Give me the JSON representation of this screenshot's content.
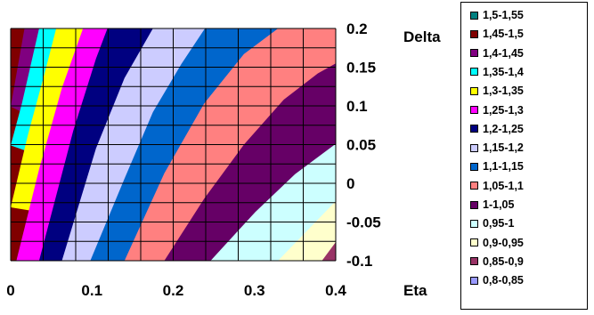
{
  "chart_data": {
    "type": "contour",
    "x_axis": {
      "label": "Eta",
      "ticks": [
        "0",
        "0.1",
        "0.2",
        "0.3",
        "0.4"
      ],
      "range": [
        0,
        0.4
      ]
    },
    "y_axis": {
      "label": "Delta",
      "ticks": [
        "0.2",
        "0.15",
        "0.1",
        "0.05",
        "0",
        "-0.05",
        "-0.1"
      ],
      "range": [
        -0.1,
        0.2
      ]
    },
    "grid": true,
    "legend_position": "right",
    "bands": [
      {
        "label": "1,5-1,55",
        "min": 1.5,
        "max": 1.55,
        "color": "#008080"
      },
      {
        "label": "1,45-1,5",
        "min": 1.45,
        "max": 1.5,
        "color": "#800000"
      },
      {
        "label": "1,4-1,45",
        "min": 1.4,
        "max": 1.45,
        "color": "#800080"
      },
      {
        "label": "1,35-1,4",
        "min": 1.35,
        "max": 1.4,
        "color": "#00FFFF"
      },
      {
        "label": "1,3-1,35",
        "min": 1.3,
        "max": 1.35,
        "color": "#FFFF00"
      },
      {
        "label": "1,25-1,3",
        "min": 1.25,
        "max": 1.3,
        "color": "#FF00FF"
      },
      {
        "label": "1,2-1,25",
        "min": 1.2,
        "max": 1.25,
        "color": "#000080"
      },
      {
        "label": "1,15-1,2",
        "min": 1.15,
        "max": 1.2,
        "color": "#CCCCFF"
      },
      {
        "label": "1,1-1,15",
        "min": 1.1,
        "max": 1.15,
        "color": "#0066CC"
      },
      {
        "label": "1,05-1,1",
        "min": 1.05,
        "max": 1.1,
        "color": "#FF8080"
      },
      {
        "label": "1-1,05",
        "min": 1.0,
        "max": 1.05,
        "color": "#660066"
      },
      {
        "label": "0,95-1",
        "min": 0.95,
        "max": 1.0,
        "color": "#CCFFFF"
      },
      {
        "label": "0,9-0,95",
        "min": 0.9,
        "max": 0.95,
        "color": "#FFFFCC"
      },
      {
        "label": "0,85-0,9",
        "min": 0.85,
        "max": 0.9,
        "color": "#993366"
      },
      {
        "label": "0,8-0,85",
        "min": 0.8,
        "max": 0.85,
        "color": "#9999FF"
      }
    ],
    "boundaries": [
      {
        "level": 1.45,
        "points": [
          [
            0.0,
            0.099
          ],
          [
            0.017,
            0.2
          ]
        ]
      },
      {
        "level": 1.4,
        "points": [
          [
            0.0,
            0.049
          ],
          [
            0.014,
            0.104
          ],
          [
            0.035,
            0.2
          ]
        ]
      },
      {
        "level": 1.35,
        "points": [
          [
            0.0,
            -0.031
          ],
          [
            0.021,
            0.062
          ],
          [
            0.042,
            0.143
          ],
          [
            0.056,
            0.2
          ]
        ]
      },
      {
        "level": 1.3,
        "points": [
          [
            0.007,
            -0.1
          ],
          [
            0.035,
            0.018
          ],
          [
            0.063,
            0.123
          ],
          [
            0.089,
            0.2
          ]
        ]
      },
      {
        "level": 1.25,
        "points": [
          [
            0.035,
            -0.1
          ],
          [
            0.077,
            0.068
          ],
          [
            0.105,
            0.161
          ],
          [
            0.119,
            0.2
          ]
        ]
      },
      {
        "level": 1.2,
        "points": [
          [
            0.063,
            -0.1
          ],
          [
            0.105,
            0.045
          ],
          [
            0.14,
            0.136
          ],
          [
            0.175,
            0.2
          ]
        ]
      },
      {
        "level": 1.15,
        "points": [
          [
            0.098,
            -0.1
          ],
          [
            0.14,
            0.006
          ],
          [
            0.175,
            0.092
          ],
          [
            0.21,
            0.154
          ],
          [
            0.239,
            0.2
          ]
        ]
      },
      {
        "level": 1.1,
        "points": [
          [
            0.14,
            -0.1
          ],
          [
            0.189,
            0.013
          ],
          [
            0.238,
            0.103
          ],
          [
            0.287,
            0.167
          ],
          [
            0.329,
            0.2
          ]
        ]
      },
      {
        "level": 1.05,
        "points": [
          [
            0.189,
            -0.1
          ],
          [
            0.238,
            -0.02
          ],
          [
            0.287,
            0.05
          ],
          [
            0.336,
            0.108
          ],
          [
            0.378,
            0.142
          ],
          [
            0.4,
            0.155
          ]
        ]
      },
      {
        "level": 1.0,
        "points": [
          [
            0.246,
            -0.1
          ],
          [
            0.301,
            -0.037
          ],
          [
            0.35,
            0.012
          ],
          [
            0.4,
            0.051
          ]
        ]
      },
      {
        "level": 0.95,
        "points": [
          [
            0.329,
            -0.1
          ],
          [
            0.4,
            -0.023
          ]
        ]
      },
      {
        "level": 0.9,
        "points": [
          [
            0.383,
            -0.1
          ],
          [
            0.4,
            -0.076
          ]
        ]
      }
    ]
  }
}
